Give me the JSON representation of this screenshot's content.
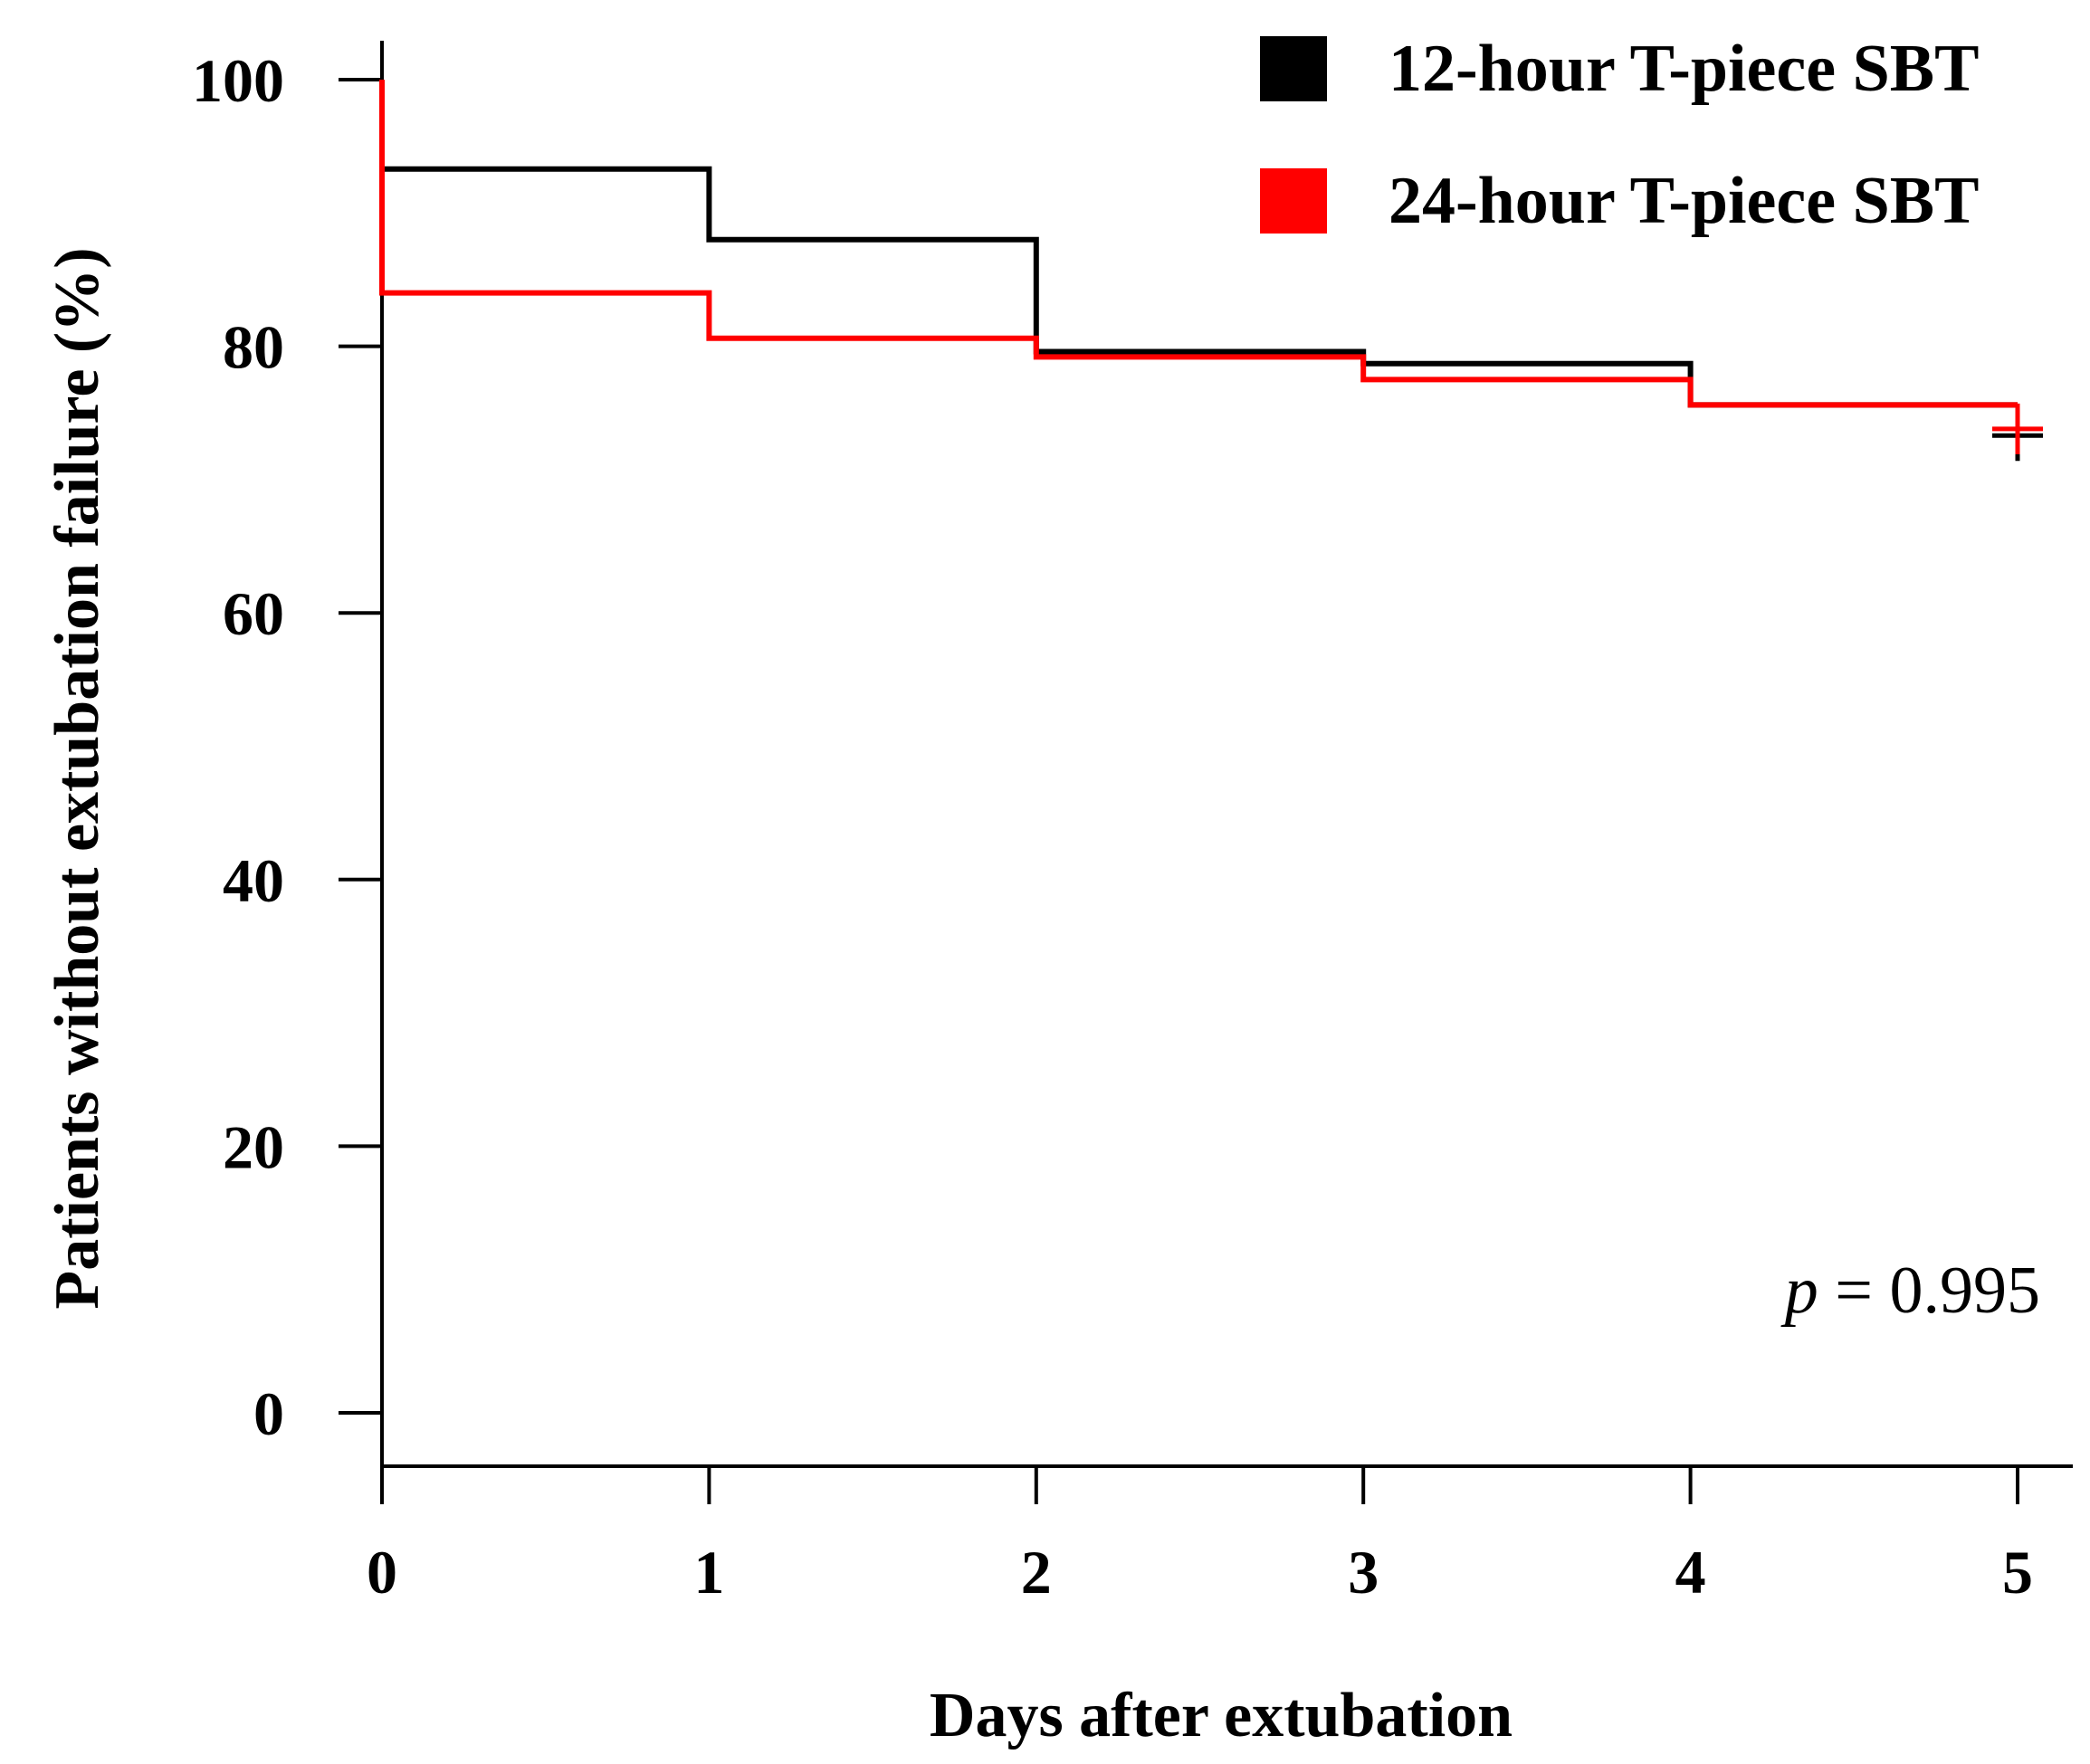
{
  "chart_data": {
    "type": "line",
    "subtype": "kaplan-meier-step",
    "title": "",
    "xlabel": "Days after extubation",
    "ylabel": "Patients without extubation failure (%)",
    "xlim": [
      0,
      5
    ],
    "ylim": [
      0,
      100
    ],
    "xticks": [
      "0",
      "1",
      "2",
      "3",
      "4",
      "5"
    ],
    "yticks": [
      "0",
      "20",
      "40",
      "60",
      "80",
      "100"
    ],
    "grid": false,
    "legend_position": "top-right",
    "series": [
      {
        "name": "12-hour T-piece SBT",
        "color": "#000000",
        "steps": [
          {
            "x": 0,
            "y": 100
          },
          {
            "x": 0,
            "y": 93.3
          },
          {
            "x": 1,
            "y": 88.0
          },
          {
            "x": 2,
            "y": 79.6
          },
          {
            "x": 3,
            "y": 78.7
          },
          {
            "x": 4,
            "y": 75.6
          }
        ],
        "end_x": 5,
        "censor": {
          "x": 5,
          "y": 73.3
        }
      },
      {
        "name": "24-hour T-piece SBT",
        "color": "#ff0000",
        "steps": [
          {
            "x": 0,
            "y": 100
          },
          {
            "x": 0,
            "y": 84.0
          },
          {
            "x": 1,
            "y": 80.6
          },
          {
            "x": 2,
            "y": 79.2
          },
          {
            "x": 3,
            "y": 77.5
          },
          {
            "x": 4,
            "y": 75.6
          }
        ],
        "end_x": 5,
        "censor": {
          "x": 5,
          "y": 73.8
        }
      }
    ],
    "annotation": {
      "p_symbol": "p",
      "p_text": " = 0.995"
    }
  }
}
